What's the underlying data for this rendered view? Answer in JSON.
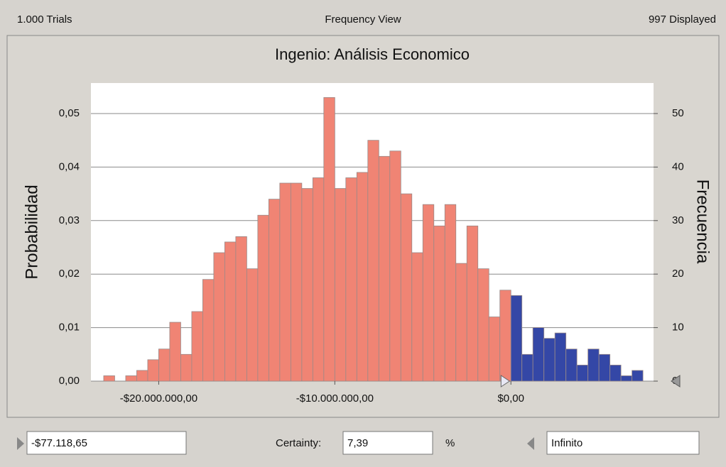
{
  "header": {
    "trials": "1.000 Trials",
    "view": "Frequency View",
    "displayed": "997 Displayed"
  },
  "chart_data": {
    "type": "histogram",
    "title": "Ingenio: Análisis Economico",
    "ylabel": "Probabilidad",
    "y2label": "Frecuencia",
    "bins": [
      -23125000,
      -22500000,
      -21875000,
      -21250000,
      -20625000,
      -20000000,
      -19375000,
      -18750000,
      -18125000,
      -17500000,
      -16875000,
      -16250000,
      -15625000,
      -15000000,
      -14375000,
      -13750000,
      -13125000,
      -12500000,
      -11875000,
      -11250000,
      -10625000,
      -10000000,
      -9375000,
      -8750000,
      -8125000,
      -7500000,
      -6875000,
      -6250000,
      -5625000,
      -5000000,
      -4375000,
      -3750000,
      -3125000,
      -2500000,
      -1875000,
      -1250000,
      -625000,
      0,
      625000,
      1250000,
      1875000,
      2500000,
      3125000,
      3750000,
      4375000,
      5000000,
      5625000,
      6250000,
      6875000,
      7500000
    ],
    "counts": [
      1,
      0,
      1,
      2,
      4,
      6,
      11,
      5,
      13,
      19,
      24,
      26,
      27,
      21,
      31,
      34,
      37,
      37,
      36,
      38,
      53,
      36,
      38,
      39,
      45,
      42,
      43,
      35,
      24,
      33,
      29,
      33,
      22,
      29,
      21,
      12,
      17,
      16,
      5,
      10,
      8,
      9,
      6,
      3,
      6,
      5,
      3,
      1,
      2
    ],
    "color": "#f08474",
    "highlight_color": "#3447a6",
    "xlim": [
      -23850000,
      8100000
    ],
    "xticks": [
      {
        "value": -20000000,
        "label": "-$20.000.000,00"
      },
      {
        "value": -10000000,
        "label": "-$10.000.000,00"
      },
      {
        "value": 0,
        "label": "$0,00"
      }
    ],
    "ylim": [
      0,
      0.0557
    ],
    "yticks": [
      {
        "value": 0,
        "label": "0,00"
      },
      {
        "value": 0.01,
        "label": "0,01"
      },
      {
        "value": 0.02,
        "label": "0,02"
      },
      {
        "value": 0.03,
        "label": "0,03"
      },
      {
        "value": 0.04,
        "label": "0,04"
      },
      {
        "value": 0.05,
        "label": "0,05"
      }
    ],
    "y2lim": [
      0,
      55.7
    ],
    "y2ticks": [
      0,
      10,
      20,
      30,
      40,
      50
    ],
    "grid": true
  },
  "footer": {
    "lower_bound": {
      "value": -77118.65,
      "label": "-$77.118,65"
    },
    "certainty_label": "Certainty:",
    "certainty": {
      "value": 7.39,
      "label": "7,39"
    },
    "percent": "%",
    "upper_bound": "Infinito"
  }
}
